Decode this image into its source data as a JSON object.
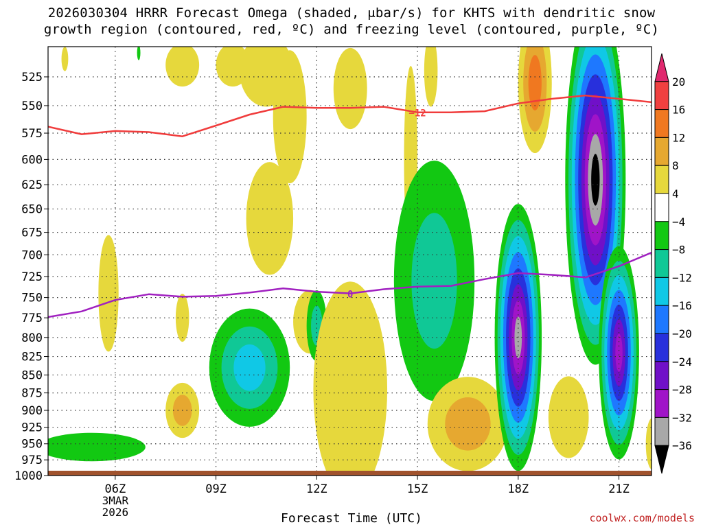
{
  "title_line1": "2026030304 HRRR Forecast Omega (shaded, μbar/s) for KHTS with dendritic snow",
  "title_line2": "growth region (contoured, red, ºC) and freezing level (contoured, purple, ºC)",
  "credit": "coolwx.com/models",
  "chart_data": {
    "type": "contour-cross-section",
    "xlabel": "Forecast Time (UTC)",
    "x_ticks": [
      {
        "label": "06Z",
        "hour": 6
      },
      {
        "label": "09Z",
        "hour": 9
      },
      {
        "label": "12Z",
        "hour": 12
      },
      {
        "label": "15Z",
        "hour": 15
      },
      {
        "label": "18Z",
        "hour": 18
      },
      {
        "label": "21Z",
        "hour": 21
      }
    ],
    "date_label": [
      "3MAR",
      "2026"
    ],
    "x_range_hours": [
      4.0,
      21.97
    ],
    "y_ticks": [
      525,
      550,
      575,
      600,
      625,
      650,
      675,
      700,
      725,
      750,
      775,
      800,
      825,
      850,
      875,
      900,
      925,
      950,
      975,
      1000
    ],
    "y_range_hPa": [
      500,
      1000
    ],
    "y_scale": "log-pressure",
    "colorbar": {
      "levels": [
        20,
        16,
        12,
        8,
        4,
        -4,
        -8,
        -12,
        -16,
        -20,
        -24,
        -28,
        -32,
        -36
      ],
      "colors": [
        "#e0286e",
        "#f04040",
        "#f07820",
        "#e6a830",
        "#e6d83c",
        "#ffffff",
        "#12c812",
        "#10c896",
        "#10c8e6",
        "#1e78ff",
        "#2830dc",
        "#7010c8",
        "#a014c8",
        "#a8a8a8",
        "#000000"
      ]
    },
    "dgz_contour": {
      "label": "−12",
      "color": "#f03c3c",
      "points": [
        [
          4.0,
          569
        ],
        [
          5.0,
          576
        ],
        [
          6.0,
          573
        ],
        [
          7.0,
          574
        ],
        [
          8.0,
          578
        ],
        [
          9.0,
          568
        ],
        [
          10.0,
          558
        ],
        [
          11.0,
          551
        ],
        [
          12.0,
          552
        ],
        [
          13.0,
          552
        ],
        [
          14.0,
          551
        ],
        [
          15.0,
          556
        ],
        [
          16.0,
          556
        ],
        [
          17.0,
          555
        ],
        [
          18.0,
          548
        ],
        [
          19.0,
          544
        ],
        [
          20.0,
          541
        ],
        [
          21.0,
          544
        ],
        [
          22.0,
          547
        ]
      ]
    },
    "freezing_level_contour": {
      "label": "0",
      "color": "#a020c0",
      "points": [
        [
          4.0,
          774
        ],
        [
          5.0,
          767
        ],
        [
          6.0,
          753
        ],
        [
          7.0,
          746
        ],
        [
          8.0,
          749
        ],
        [
          9.0,
          748
        ],
        [
          10.0,
          744
        ],
        [
          11.0,
          739
        ],
        [
          12.0,
          743
        ],
        [
          13.0,
          745
        ],
        [
          14.0,
          740
        ],
        [
          15.0,
          737
        ],
        [
          16.0,
          736
        ],
        [
          17.0,
          728
        ],
        [
          18.0,
          721
        ],
        [
          19.0,
          723
        ],
        [
          20.0,
          726
        ],
        [
          21.0,
          713
        ],
        [
          22.0,
          697
        ]
      ]
    },
    "omega_cells": [
      {
        "t": 4.5,
        "p": 510,
        "rt": 0.1,
        "rp": 10,
        "v": 4
      },
      {
        "t": 6.7,
        "p": 505,
        "rt": 0.05,
        "rp": 6,
        "v": -4
      },
      {
        "t": 8.0,
        "p": 515,
        "rt": 0.5,
        "rp": 18,
        "v": 4
      },
      {
        "t": 9.5,
        "p": 515,
        "rt": 0.5,
        "rp": 18,
        "v": 4
      },
      {
        "t": 10.5,
        "p": 520,
        "rt": 0.8,
        "rp": 30,
        "v": 4
      },
      {
        "t": 11.2,
        "p": 560,
        "rt": 0.5,
        "rp": 60,
        "v": 4
      },
      {
        "t": 10.6,
        "p": 660,
        "rt": 0.7,
        "rp": 60,
        "v": 4
      },
      {
        "t": 11.8,
        "p": 780,
        "rt": 0.5,
        "rp": 40,
        "v": 4
      },
      {
        "t": 13.0,
        "p": 535,
        "rt": 0.5,
        "rp": 35,
        "v": 4
      },
      {
        "t": 14.8,
        "p": 600,
        "rt": 0.2,
        "rp": 90,
        "v": 4
      },
      {
        "t": 15.4,
        "p": 520,
        "rt": 0.2,
        "rp": 30,
        "v": 4
      },
      {
        "t": 5.8,
        "p": 745,
        "rt": 0.3,
        "rp": 70,
        "v": 4
      },
      {
        "t": 8.0,
        "p": 775,
        "rt": 0.2,
        "rp": 30,
        "v": 4
      },
      {
        "t": 8.0,
        "p": 900,
        "rt": 0.5,
        "rp": 40,
        "v": 8
      },
      {
        "t": 10.0,
        "p": 840,
        "rt": 1.2,
        "rp": 80,
        "v": -12
      },
      {
        "t": 5.3,
        "p": 955,
        "rt": 1.6,
        "rp": 22,
        "v": -4
      },
      {
        "t": 12.0,
        "p": 785,
        "rt": 0.3,
        "rp": 45,
        "v": -8
      },
      {
        "t": 13.0,
        "p": 870,
        "rt": 1.1,
        "rp": 150,
        "v": 4
      },
      {
        "t": 15.5,
        "p": 730,
        "rt": 1.2,
        "rp": 140,
        "v": -8
      },
      {
        "t": 16.5,
        "p": 920,
        "rt": 1.2,
        "rp": 70,
        "v": 8
      },
      {
        "t": 18.0,
        "p": 800,
        "rt": 0.7,
        "rp": 170,
        "v": -32
      },
      {
        "t": 18.5,
        "p": 530,
        "rt": 0.5,
        "rp": 60,
        "v": 12
      },
      {
        "t": 19.5,
        "p": 910,
        "rt": 0.6,
        "rp": 60,
        "v": 4
      },
      {
        "t": 20.3,
        "p": 620,
        "rt": 0.9,
        "rp": 180,
        "v": -36
      },
      {
        "t": 21.0,
        "p": 820,
        "rt": 0.6,
        "rp": 140,
        "v": -28
      },
      {
        "t": 22.0,
        "p": 950,
        "rt": 0.2,
        "rp": 40,
        "v": 4
      }
    ]
  }
}
